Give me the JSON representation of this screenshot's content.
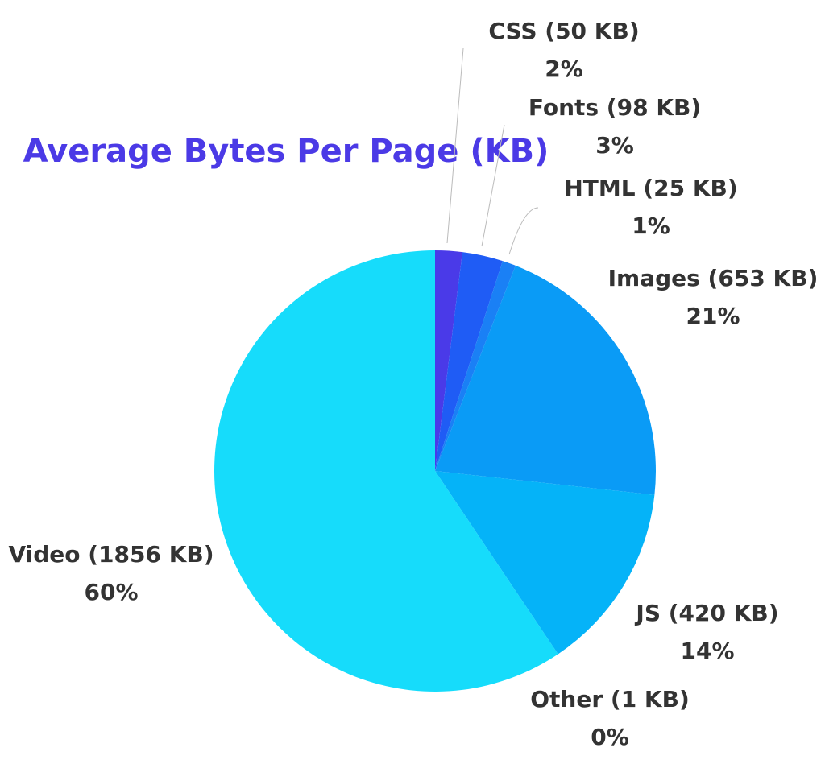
{
  "chart_data": {
    "type": "pie",
    "title": "Average Bytes Per Page (KB)",
    "categories": [
      "CSS (50 KB)",
      "Fonts (98 KB)",
      "HTML (25 KB)",
      "Images (653 KB)",
      "JS (420 KB)",
      "Other (1 KB)",
      "Video (1856 KB)"
    ],
    "values": [
      2,
      3,
      1,
      21,
      14,
      0,
      60
    ],
    "value_labels": [
      "2%",
      "3%",
      "1%",
      "21%",
      "14%",
      "0%",
      "60%"
    ],
    "colors": [
      "#4a3ae8",
      "#1f5cf5",
      "#1a80f5",
      "#0a9bf6",
      "#05b3f8",
      "#0cc8fa",
      "#16dcfb"
    ]
  }
}
